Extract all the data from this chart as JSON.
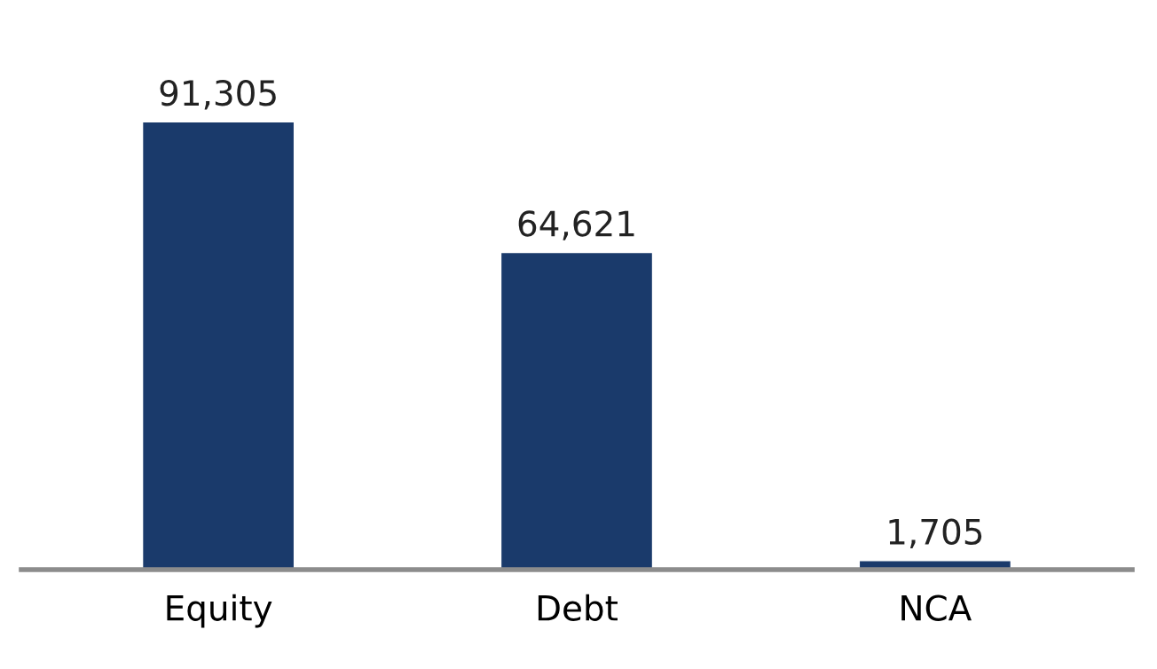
{
  "chart_data": {
    "type": "bar",
    "categories": [
      "Equity",
      "Debt",
      "NCA"
    ],
    "values": [
      91305,
      64621,
      1705
    ],
    "value_labels": [
      "91,305",
      "64,621",
      "1,705"
    ],
    "color": "#1a3a6b"
  }
}
